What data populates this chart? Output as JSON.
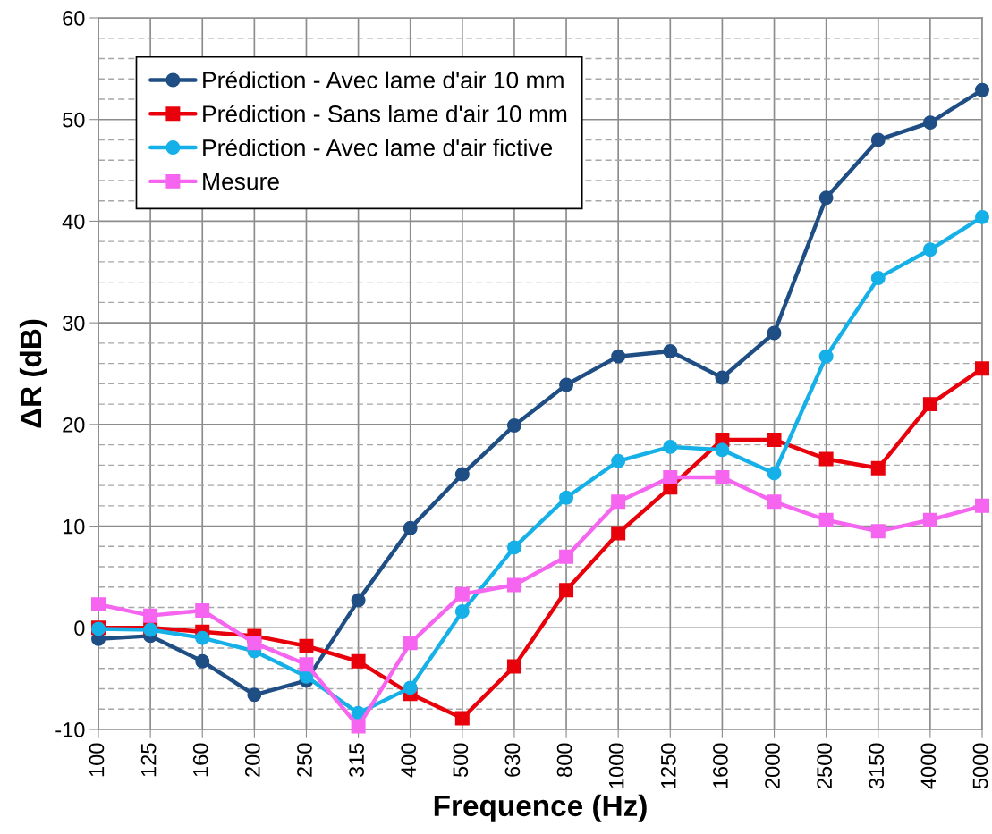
{
  "chart_data": {
    "type": "line",
    "xlabel": "Frequence (Hz)",
    "ylabel": "ΔR (dB)",
    "categories": [
      "100",
      "125",
      "160",
      "200",
      "250",
      "315",
      "400",
      "500",
      "630",
      "800",
      "1000",
      "1250",
      "1600",
      "2000",
      "2500",
      "3150",
      "4000",
      "5000"
    ],
    "series": [
      {
        "name": "Prédiction - Avec lame d'air 10 mm",
        "color": "#1f4e85",
        "marker": "circle",
        "values": [
          -1.1,
          -0.8,
          -3.3,
          -6.6,
          -5.2,
          2.7,
          9.8,
          15.1,
          19.9,
          23.9,
          26.7,
          27.2,
          24.6,
          29.0,
          42.3,
          48.0,
          49.7,
          52.9
        ]
      },
      {
        "name": "Prédiction - Sans lame d'air 10 mm",
        "color": "#e8000b",
        "marker": "square",
        "values": [
          0.0,
          0.0,
          -0.4,
          -0.8,
          -1.8,
          -3.3,
          -6.5,
          -8.9,
          -3.8,
          3.7,
          9.3,
          13.8,
          18.5,
          18.5,
          16.6,
          15.7,
          22.0,
          25.5
        ]
      },
      {
        "name": "Prédiction - Avec lame d'air fictive",
        "color": "#15b0e8",
        "marker": "circle",
        "values": [
          -0.1,
          -0.2,
          -1.0,
          -2.3,
          -4.8,
          -8.4,
          -5.9,
          1.6,
          7.9,
          12.8,
          16.4,
          17.8,
          17.5,
          15.2,
          26.7,
          34.4,
          37.2,
          40.4
        ]
      },
      {
        "name": "Mesure",
        "color": "#f565f0",
        "marker": "square",
        "values": [
          2.3,
          1.2,
          1.7,
          -1.5,
          -3.6,
          -9.7,
          -1.5,
          3.3,
          4.2,
          7.0,
          12.4,
          14.8,
          14.8,
          12.4,
          10.6,
          9.5,
          10.6,
          12.0
        ]
      }
    ],
    "ylim": [
      -10,
      60
    ],
    "yticks": [
      -10,
      {
        "value": -8,
        "label": null
      },
      {
        "value": -6,
        "label": null
      },
      {
        "value": -4,
        "label": null
      },
      {
        "value": -2,
        "label": null
      },
      0,
      {
        "value": 2,
        "label": null
      },
      {
        "value": 4,
        "label": null
      },
      {
        "value": 6,
        "label": null
      },
      {
        "value": 8,
        "label": null
      },
      10,
      {
        "value": 12,
        "label": null
      },
      {
        "value": 14,
        "label": null
      },
      {
        "value": 16,
        "label": null
      },
      {
        "value": 18,
        "label": null
      },
      20,
      {
        "value": 22,
        "label": null
      },
      {
        "value": 24,
        "label": null
      },
      {
        "value": 26,
        "label": null
      },
      {
        "value": 28,
        "label": null
      },
      30,
      {
        "value": 32,
        "label": null
      },
      {
        "value": 34,
        "label": null
      },
      {
        "value": 36,
        "label": null
      },
      {
        "value": 38,
        "label": null
      },
      40,
      {
        "value": 42,
        "label": null
      },
      {
        "value": 44,
        "label": null
      },
      {
        "value": 46,
        "label": null
      },
      {
        "value": 48,
        "label": null
      },
      50,
      {
        "value": 52,
        "label": null
      },
      {
        "value": 54,
        "label": null
      },
      {
        "value": 56,
        "label": null
      },
      {
        "value": 58,
        "label": null
      },
      60
    ],
    "grid": true,
    "legend": "top left",
    "line_style": "solid"
  }
}
